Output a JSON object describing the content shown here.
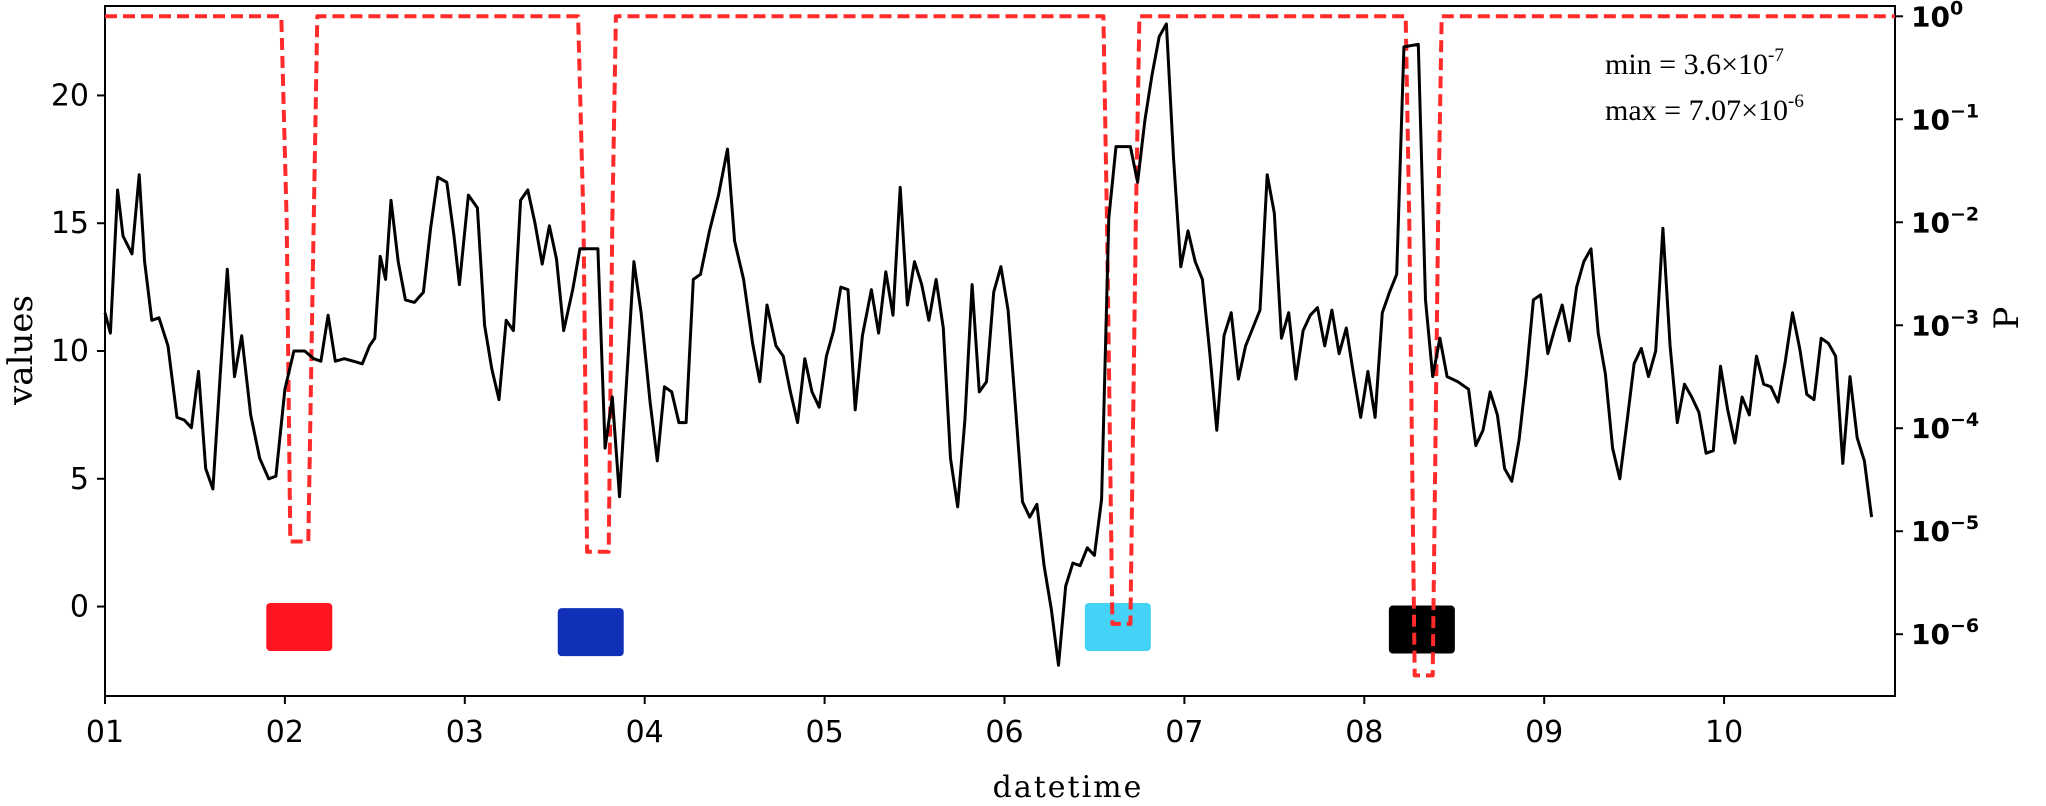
{
  "chart_data": {
    "type": "line",
    "xlabel": "datetime",
    "ylabel_left": "values",
    "ylabel_right": "P",
    "xlim": [
      1,
      10.95
    ],
    "ylim_left": [
      -3.5,
      23.5
    ],
    "ylim_right_log10": [
      -6.6,
      0.1
    ],
    "y_scale_right": "log",
    "grid": false,
    "x_ticks": [
      {
        "v": 1,
        "label": "01"
      },
      {
        "v": 2,
        "label": "02"
      },
      {
        "v": 3,
        "label": "03"
      },
      {
        "v": 4,
        "label": "04"
      },
      {
        "v": 5,
        "label": "05"
      },
      {
        "v": 6,
        "label": "06"
      },
      {
        "v": 7,
        "label": "07"
      },
      {
        "v": 8,
        "label": "08"
      },
      {
        "v": 9,
        "label": "09"
      },
      {
        "v": 10,
        "label": "10"
      }
    ],
    "y_ticks_left": [
      0,
      5,
      10,
      15,
      20
    ],
    "y_ticks_right": [
      {
        "exp": 0,
        "base": "10",
        "sup": "0"
      },
      {
        "exp": -1,
        "base": "10",
        "sup": "−1"
      },
      {
        "exp": -2,
        "base": "10",
        "sup": "−2"
      },
      {
        "exp": -3,
        "base": "10",
        "sup": "−3"
      },
      {
        "exp": -4,
        "base": "10",
        "sup": "−4"
      },
      {
        "exp": -5,
        "base": "10",
        "sup": "−5"
      },
      {
        "exp": -6,
        "base": "10",
        "sup": "−6"
      }
    ],
    "annotations": {
      "min_text": "min = 3.6×10",
      "min_sup": "-7",
      "max_text": "max = 7.07×10",
      "max_sup": "-6"
    },
    "colors": {
      "values_line": "#000000",
      "p_line": "#ff2a2a",
      "markers": [
        "#ff1420",
        "#1030b8",
        "#44d2f6",
        "#000000"
      ]
    },
    "markers": [
      {
        "x": 2.08,
        "y": -0.8
      },
      {
        "x": 3.7,
        "y": -1.0
      },
      {
        "x": 6.63,
        "y": -0.8
      },
      {
        "x": 8.32,
        "y": -0.9
      }
    ],
    "series": [
      {
        "key": "values",
        "color": "#000000",
        "points": [
          [
            1.0,
            11.5
          ],
          [
            1.03,
            10.7
          ],
          [
            1.07,
            16.3
          ],
          [
            1.1,
            14.5
          ],
          [
            1.15,
            13.8
          ],
          [
            1.19,
            16.9
          ],
          [
            1.22,
            13.5
          ],
          [
            1.26,
            11.2
          ],
          [
            1.3,
            11.3
          ],
          [
            1.35,
            10.2
          ],
          [
            1.4,
            7.4
          ],
          [
            1.44,
            7.3
          ],
          [
            1.48,
            7.0
          ],
          [
            1.52,
            9.2
          ],
          [
            1.56,
            5.4
          ],
          [
            1.6,
            4.6
          ],
          [
            1.64,
            9.0
          ],
          [
            1.68,
            13.2
          ],
          [
            1.72,
            9.0
          ],
          [
            1.76,
            10.6
          ],
          [
            1.81,
            7.5
          ],
          [
            1.86,
            5.8
          ],
          [
            1.91,
            5.0
          ],
          [
            1.95,
            5.1
          ],
          [
            2.0,
            8.5
          ],
          [
            2.05,
            10.0
          ],
          [
            2.11,
            10.0
          ],
          [
            2.16,
            9.7
          ],
          [
            2.2,
            9.6
          ],
          [
            2.24,
            11.4
          ],
          [
            2.28,
            9.6
          ],
          [
            2.33,
            9.7
          ],
          [
            2.38,
            9.6
          ],
          [
            2.43,
            9.5
          ],
          [
            2.47,
            10.2
          ],
          [
            2.5,
            10.5
          ],
          [
            2.53,
            13.7
          ],
          [
            2.56,
            12.8
          ],
          [
            2.59,
            15.9
          ],
          [
            2.63,
            13.5
          ],
          [
            2.67,
            12.0
          ],
          [
            2.72,
            11.9
          ],
          [
            2.77,
            12.3
          ],
          [
            2.81,
            14.8
          ],
          [
            2.85,
            16.8
          ],
          [
            2.9,
            16.6
          ],
          [
            2.94,
            14.5
          ],
          [
            2.97,
            12.6
          ],
          [
            3.02,
            16.1
          ],
          [
            3.07,
            15.6
          ],
          [
            3.11,
            11.0
          ],
          [
            3.15,
            9.3
          ],
          [
            3.19,
            8.1
          ],
          [
            3.23,
            11.2
          ],
          [
            3.27,
            10.8
          ],
          [
            3.31,
            15.9
          ],
          [
            3.35,
            16.3
          ],
          [
            3.39,
            15.0
          ],
          [
            3.43,
            13.4
          ],
          [
            3.47,
            14.9
          ],
          [
            3.51,
            13.6
          ],
          [
            3.55,
            10.8
          ],
          [
            3.6,
            12.4
          ],
          [
            3.64,
            14.0
          ],
          [
            3.68,
            14.0
          ],
          [
            3.74,
            14.0
          ],
          [
            3.78,
            6.2
          ],
          [
            3.82,
            8.2
          ],
          [
            3.86,
            4.3
          ],
          [
            3.9,
            8.9
          ],
          [
            3.94,
            13.5
          ],
          [
            3.98,
            11.5
          ],
          [
            4.03,
            8.0
          ],
          [
            4.07,
            5.7
          ],
          [
            4.11,
            8.6
          ],
          [
            4.15,
            8.4
          ],
          [
            4.19,
            7.2
          ],
          [
            4.23,
            7.2
          ],
          [
            4.27,
            12.8
          ],
          [
            4.31,
            13.0
          ],
          [
            4.36,
            14.7
          ],
          [
            4.41,
            16.1
          ],
          [
            4.46,
            17.9
          ],
          [
            4.5,
            14.3
          ],
          [
            4.55,
            12.8
          ],
          [
            4.6,
            10.3
          ],
          [
            4.64,
            8.8
          ],
          [
            4.68,
            11.8
          ],
          [
            4.73,
            10.2
          ],
          [
            4.77,
            9.8
          ],
          [
            4.81,
            8.4
          ],
          [
            4.85,
            7.2
          ],
          [
            4.89,
            9.7
          ],
          [
            4.93,
            8.4
          ],
          [
            4.97,
            7.8
          ],
          [
            5.01,
            9.8
          ],
          [
            5.05,
            10.8
          ],
          [
            5.09,
            12.5
          ],
          [
            5.13,
            12.4
          ],
          [
            5.17,
            7.7
          ],
          [
            5.21,
            10.6
          ],
          [
            5.26,
            12.4
          ],
          [
            5.3,
            10.7
          ],
          [
            5.34,
            13.1
          ],
          [
            5.38,
            11.4
          ],
          [
            5.42,
            16.4
          ],
          [
            5.46,
            11.8
          ],
          [
            5.5,
            13.5
          ],
          [
            5.54,
            12.6
          ],
          [
            5.58,
            11.2
          ],
          [
            5.62,
            12.8
          ],
          [
            5.66,
            10.9
          ],
          [
            5.7,
            5.8
          ],
          [
            5.74,
            3.9
          ],
          [
            5.78,
            7.3
          ],
          [
            5.82,
            12.6
          ],
          [
            5.86,
            8.4
          ],
          [
            5.9,
            8.8
          ],
          [
            5.94,
            12.3
          ],
          [
            5.98,
            13.3
          ],
          [
            6.02,
            11.6
          ],
          [
            6.06,
            7.9
          ],
          [
            6.1,
            4.1
          ],
          [
            6.14,
            3.5
          ],
          [
            6.18,
            4.0
          ],
          [
            6.22,
            1.6
          ],
          [
            6.26,
            -0.1
          ],
          [
            6.3,
            -2.3
          ],
          [
            6.34,
            0.8
          ],
          [
            6.38,
            1.7
          ],
          [
            6.42,
            1.6
          ],
          [
            6.46,
            2.3
          ],
          [
            6.5,
            2.0
          ],
          [
            6.54,
            4.2
          ],
          [
            6.58,
            15.2
          ],
          [
            6.62,
            18.0
          ],
          [
            6.7,
            18.0
          ],
          [
            6.74,
            16.6
          ],
          [
            6.78,
            19.0
          ],
          [
            6.82,
            20.8
          ],
          [
            6.86,
            22.3
          ],
          [
            6.9,
            22.8
          ],
          [
            6.94,
            17.5
          ],
          [
            6.98,
            13.3
          ],
          [
            7.02,
            14.7
          ],
          [
            7.06,
            13.5
          ],
          [
            7.1,
            12.8
          ],
          [
            7.14,
            10.0
          ],
          [
            7.18,
            6.9
          ],
          [
            7.22,
            10.6
          ],
          [
            7.26,
            11.5
          ],
          [
            7.3,
            8.9
          ],
          [
            7.34,
            10.2
          ],
          [
            7.38,
            10.9
          ],
          [
            7.42,
            11.6
          ],
          [
            7.46,
            16.9
          ],
          [
            7.5,
            15.4
          ],
          [
            7.54,
            10.5
          ],
          [
            7.58,
            11.5
          ],
          [
            7.62,
            8.9
          ],
          [
            7.66,
            10.8
          ],
          [
            7.7,
            11.4
          ],
          [
            7.74,
            11.7
          ],
          [
            7.78,
            10.2
          ],
          [
            7.82,
            11.6
          ],
          [
            7.86,
            9.9
          ],
          [
            7.9,
            10.9
          ],
          [
            7.94,
            9.1
          ],
          [
            7.98,
            7.4
          ],
          [
            8.02,
            9.2
          ],
          [
            8.06,
            7.4
          ],
          [
            8.1,
            11.5
          ],
          [
            8.14,
            12.3
          ],
          [
            8.18,
            13.0
          ],
          [
            8.22,
            21.9
          ],
          [
            8.3,
            22.0
          ],
          [
            8.34,
            12.0
          ],
          [
            8.38,
            9.0
          ],
          [
            8.42,
            10.5
          ],
          [
            8.46,
            9.0
          ],
          [
            8.52,
            8.8
          ],
          [
            8.58,
            8.5
          ],
          [
            8.62,
            6.3
          ],
          [
            8.66,
            6.9
          ],
          [
            8.7,
            8.4
          ],
          [
            8.74,
            7.5
          ],
          [
            8.78,
            5.4
          ],
          [
            8.82,
            4.9
          ],
          [
            8.86,
            6.5
          ],
          [
            8.9,
            9.0
          ],
          [
            8.94,
            12.0
          ],
          [
            8.98,
            12.2
          ],
          [
            9.02,
            9.9
          ],
          [
            9.06,
            10.9
          ],
          [
            9.1,
            11.8
          ],
          [
            9.14,
            10.4
          ],
          [
            9.18,
            12.5
          ],
          [
            9.22,
            13.5
          ],
          [
            9.26,
            14.0
          ],
          [
            9.3,
            10.7
          ],
          [
            9.34,
            9.1
          ],
          [
            9.38,
            6.2
          ],
          [
            9.42,
            5.0
          ],
          [
            9.46,
            7.2
          ],
          [
            9.5,
            9.5
          ],
          [
            9.54,
            10.1
          ],
          [
            9.58,
            9.0
          ],
          [
            9.62,
            10.0
          ],
          [
            9.66,
            14.8
          ],
          [
            9.7,
            10.2
          ],
          [
            9.74,
            7.2
          ],
          [
            9.78,
            8.7
          ],
          [
            9.82,
            8.2
          ],
          [
            9.86,
            7.6
          ],
          [
            9.9,
            6.0
          ],
          [
            9.94,
            6.1
          ],
          [
            9.98,
            9.4
          ],
          [
            10.02,
            7.7
          ],
          [
            10.06,
            6.4
          ],
          [
            10.1,
            8.2
          ],
          [
            10.14,
            7.5
          ],
          [
            10.18,
            9.8
          ],
          [
            10.22,
            8.7
          ],
          [
            10.26,
            8.6
          ],
          [
            10.3,
            8.0
          ],
          [
            10.34,
            9.6
          ],
          [
            10.38,
            11.5
          ],
          [
            10.42,
            10.1
          ],
          [
            10.46,
            8.3
          ],
          [
            10.5,
            8.1
          ],
          [
            10.54,
            10.5
          ],
          [
            10.58,
            10.3
          ],
          [
            10.62,
            9.8
          ],
          [
            10.66,
            5.6
          ],
          [
            10.7,
            9.0
          ],
          [
            10.74,
            6.6
          ],
          [
            10.78,
            5.7
          ],
          [
            10.82,
            3.5
          ]
        ]
      },
      {
        "key": "p",
        "color": "#ff2a2a",
        "points_log10": [
          [
            1.0,
            0
          ],
          [
            1.98,
            0
          ],
          [
            2.01,
            -2.0
          ],
          [
            2.03,
            -5.1
          ],
          [
            2.13,
            -5.1
          ],
          [
            2.16,
            -2.0
          ],
          [
            2.18,
            0
          ],
          [
            3.63,
            0
          ],
          [
            3.66,
            -2.0
          ],
          [
            3.68,
            -5.2
          ],
          [
            3.8,
            -5.2
          ],
          [
            3.82,
            -2.0
          ],
          [
            3.84,
            0
          ],
          [
            6.55,
            0
          ],
          [
            6.57,
            -2.0
          ],
          [
            6.6,
            -5.9
          ],
          [
            6.7,
            -5.9
          ],
          [
            6.73,
            -2.0
          ],
          [
            6.75,
            0
          ],
          [
            8.23,
            0
          ],
          [
            8.25,
            -2.0
          ],
          [
            8.28,
            -6.4
          ],
          [
            8.38,
            -6.4
          ],
          [
            8.41,
            -2.0
          ],
          [
            8.43,
            0
          ],
          [
            10.95,
            0
          ]
        ]
      }
    ]
  }
}
